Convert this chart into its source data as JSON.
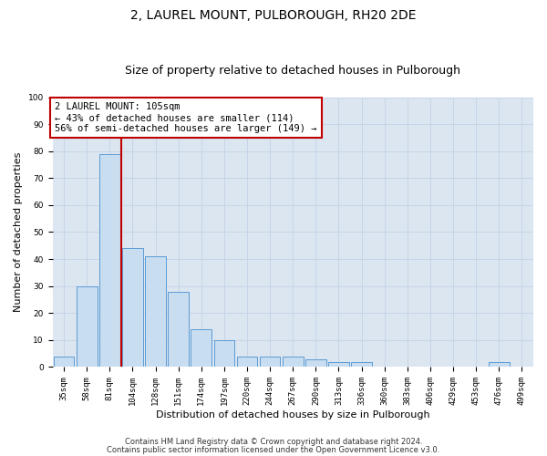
{
  "title": "2, LAUREL MOUNT, PULBOROUGH, RH20 2DE",
  "subtitle": "Size of property relative to detached houses in Pulborough",
  "xlabel": "Distribution of detached houses by size in Pulborough",
  "ylabel": "Number of detached properties",
  "categories": [
    "35sqm",
    "58sqm",
    "81sqm",
    "104sqm",
    "128sqm",
    "151sqm",
    "174sqm",
    "197sqm",
    "220sqm",
    "244sqm",
    "267sqm",
    "290sqm",
    "313sqm",
    "336sqm",
    "360sqm",
    "383sqm",
    "406sqm",
    "429sqm",
    "453sqm",
    "476sqm",
    "499sqm"
  ],
  "values": [
    4,
    30,
    79,
    44,
    41,
    28,
    14,
    10,
    4,
    4,
    4,
    3,
    2,
    2,
    0,
    0,
    0,
    0,
    0,
    2,
    0
  ],
  "bar_color": "#c9ddf0",
  "bar_edge_color": "#5b9bd5",
  "bar_edge_width": 0.7,
  "grid_color": "#c8d4e8",
  "bg_color": "#dce6f1",
  "vline_color": "#c00000",
  "annotation_text": "2 LAUREL MOUNT: 105sqm\n← 43% of detached houses are smaller (114)\n56% of semi-detached houses are larger (149) →",
  "annotation_box_edge_color": "#c00000",
  "ylim": [
    0,
    100
  ],
  "yticks": [
    0,
    10,
    20,
    30,
    40,
    50,
    60,
    70,
    80,
    90,
    100
  ],
  "footnote1": "Contains HM Land Registry data © Crown copyright and database right 2024.",
  "footnote2": "Contains public sector information licensed under the Open Government Licence v3.0.",
  "title_fontsize": 10,
  "subtitle_fontsize": 9,
  "xlabel_fontsize": 8,
  "ylabel_fontsize": 8,
  "tick_fontsize": 6.5,
  "annotation_fontsize": 7.5,
  "footnote_fontsize": 6
}
